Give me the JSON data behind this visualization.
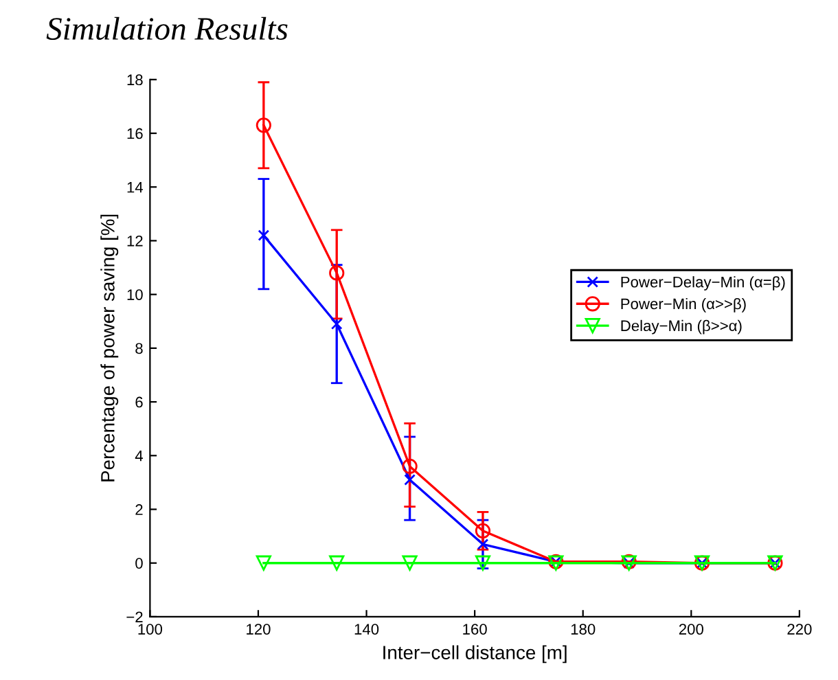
{
  "chart_data": {
    "type": "line",
    "title": "Simulation Results",
    "xlabel": "Inter−cell distance [m]",
    "ylabel": "Percentage of power saving [%]",
    "x": [
      121,
      134.5,
      148,
      161.5,
      175,
      188.5,
      202,
      215.5
    ],
    "series": [
      {
        "name": "Power−Delay−Min (α=β)",
        "color": "#0000ff",
        "marker": "cross",
        "values": [
          12.2,
          8.9,
          3.1,
          0.7,
          0.05,
          0,
          0,
          0
        ],
        "errors": [
          [
            10.2,
            14.3
          ],
          [
            6.7,
            11.1
          ],
          [
            1.6,
            4.7
          ],
          [
            -0.2,
            1.6
          ],
          null,
          null,
          null,
          null
        ]
      },
      {
        "name": "Power−Min (α>>β)",
        "color": "#ff0000",
        "marker": "circle",
        "values": [
          16.3,
          10.8,
          3.6,
          1.2,
          0.05,
          0.05,
          0,
          0
        ],
        "errors": [
          [
            14.7,
            17.9
          ],
          [
            9.1,
            12.4
          ],
          [
            2.1,
            5.2
          ],
          [
            0.5,
            1.9
          ],
          null,
          null,
          null,
          null
        ]
      },
      {
        "name": "Delay−Min (β>>α)",
        "color": "#00ff00",
        "marker": "triangle",
        "values": [
          0,
          0,
          0,
          0,
          0,
          0,
          0,
          0
        ]
      }
    ],
    "xlim": [
      100,
      220
    ],
    "xticks": [
      100,
      120,
      140,
      160,
      180,
      200,
      220
    ],
    "ylim": [
      -2,
      18
    ],
    "yticks": [
      {
        "value": -2,
        "label": "−2"
      },
      0,
      2,
      4,
      6,
      8,
      10,
      12,
      14,
      16,
      18
    ],
    "grid": false,
    "legend": "right",
    "line_style": "solid"
  }
}
